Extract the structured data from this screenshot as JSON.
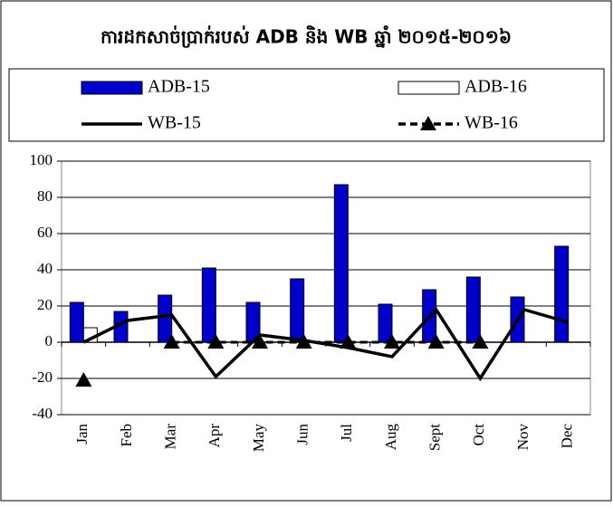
{
  "chart_data": {
    "type": "bar",
    "title": "ការដកសាច់ប្រាក់របស់ ADB និង WB ឆ្នាំ ២០១៥-២០១៦",
    "categories": [
      "Jan",
      "Feb",
      "Mar",
      "Apr",
      "May",
      "Jun",
      "Jul",
      "Aug",
      "Sept",
      "Oct",
      "Nov",
      "Dec"
    ],
    "series": [
      {
        "name": "ADB-15",
        "type": "bar",
        "color": "#0000cc",
        "values": [
          22,
          17,
          26,
          41,
          22,
          35,
          87,
          21,
          29,
          36,
          25,
          53
        ]
      },
      {
        "name": "ADB-16",
        "type": "bar",
        "color": "#ffffff",
        "values": [
          8,
          null,
          null,
          null,
          null,
          null,
          null,
          null,
          null,
          null,
          null,
          null
        ]
      },
      {
        "name": "WB-15",
        "type": "line",
        "color": "#000000",
        "values": [
          0,
          12,
          15,
          -19,
          4,
          1,
          -3,
          -8,
          18,
          -20,
          18,
          11
        ]
      },
      {
        "name": "WB-16",
        "type": "line",
        "color": "#000000",
        "dashed": true,
        "marker": "triangle",
        "values": [
          -21,
          null,
          0,
          0,
          0,
          0,
          0,
          0,
          0,
          0,
          null,
          null
        ]
      }
    ],
    "ylim": [
      -40,
      100
    ],
    "yticks": [
      -40,
      -20,
      0,
      20,
      40,
      60,
      80,
      100
    ],
    "grid": true
  }
}
